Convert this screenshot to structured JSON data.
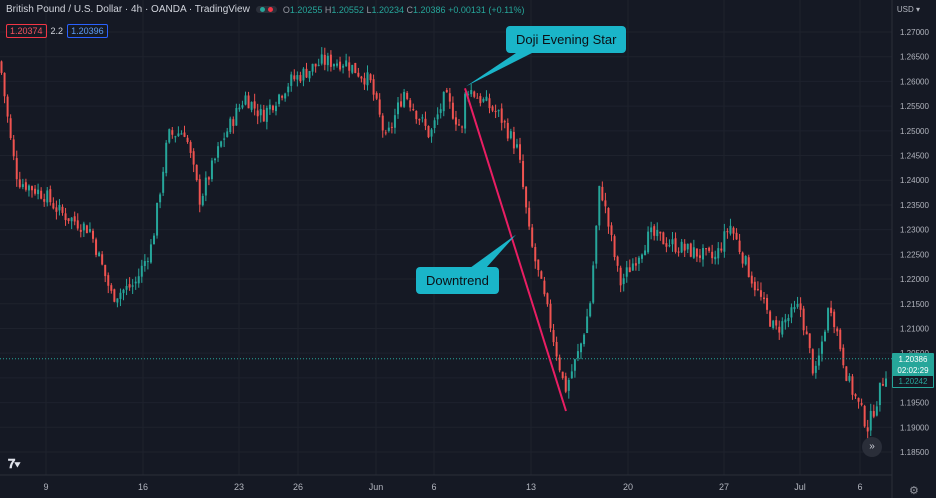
{
  "header": {
    "symbol": "British Pound / U.S. Dollar · 4h · OANDA · TradingView",
    "o_key": "O",
    "o_val": "1.20255",
    "h_key": "H",
    "h_val": "1.20552",
    "l_key": "L",
    "l_val": "1.20234",
    "c_key": "C",
    "c_val": "1.20386",
    "change": "+0.00131 (+0.11%)",
    "sell_price": "1.20374",
    "spread": "2.2",
    "buy_price": "1.20396"
  },
  "currency": "USD",
  "current_price": "1.20386",
  "countdown": "02:02:29",
  "prev_close": "1.20242",
  "annotations": {
    "top": "Doji Evening Star",
    "middle": "Downtrend"
  },
  "icons": {
    "logo": "tradingview-logo-icon",
    "scroll": "scroll-forward-icon",
    "settings": "settings-gear-icon"
  },
  "colors": {
    "background": "#151924",
    "up": "#26a69a",
    "down": "#ef5350",
    "callout": "#1ab5c9",
    "trendline": "#e91e63"
  },
  "chart_data": {
    "type": "candlestick",
    "ylim": [
      1.183,
      1.273
    ],
    "y_ticks": [
      "1.27000",
      "1.26500",
      "1.26000",
      "1.25500",
      "1.25000",
      "1.24500",
      "1.24000",
      "1.23500",
      "1.23000",
      "1.22500",
      "1.22000",
      "1.21500",
      "1.21000",
      "1.20500",
      "1.20000",
      "1.19500",
      "1.19000",
      "1.18500"
    ],
    "x_ticks": [
      "9",
      "16",
      "23",
      "26",
      "Jun",
      "6",
      "13",
      "20",
      "27",
      "Jul",
      "6"
    ],
    "waypoints": [
      {
        "x": 0,
        "price": 1.264
      },
      {
        "x": 12,
        "price": 1.246
      },
      {
        "x": 18,
        "price": 1.24
      },
      {
        "x": 45,
        "price": 1.237
      },
      {
        "x": 60,
        "price": 1.2335
      },
      {
        "x": 90,
        "price": 1.23
      },
      {
        "x": 112,
        "price": 1.2165
      },
      {
        "x": 135,
        "price": 1.219
      },
      {
        "x": 152,
        "price": 1.227
      },
      {
        "x": 168,
        "price": 1.249
      },
      {
        "x": 185,
        "price": 1.25
      },
      {
        "x": 200,
        "price": 1.236
      },
      {
        "x": 222,
        "price": 1.248
      },
      {
        "x": 245,
        "price": 1.257
      },
      {
        "x": 262,
        "price": 1.253
      },
      {
        "x": 290,
        "price": 1.26
      },
      {
        "x": 322,
        "price": 1.264
      },
      {
        "x": 345,
        "price": 1.264
      },
      {
        "x": 370,
        "price": 1.26
      },
      {
        "x": 386,
        "price": 1.248
      },
      {
        "x": 404,
        "price": 1.258
      },
      {
        "x": 430,
        "price": 1.249
      },
      {
        "x": 445,
        "price": 1.257
      },
      {
        "x": 462,
        "price": 1.25
      },
      {
        "x": 466,
        "price": 1.259
      },
      {
        "x": 500,
        "price": 1.253
      },
      {
        "x": 518,
        "price": 1.246
      },
      {
        "x": 530,
        "price": 1.228
      },
      {
        "x": 548,
        "price": 1.213
      },
      {
        "x": 565,
        "price": 1.1975
      },
      {
        "x": 580,
        "price": 1.206
      },
      {
        "x": 590,
        "price": 1.215
      },
      {
        "x": 600,
        "price": 1.2395
      },
      {
        "x": 620,
        "price": 1.219
      },
      {
        "x": 650,
        "price": 1.229
      },
      {
        "x": 685,
        "price": 1.226
      },
      {
        "x": 715,
        "price": 1.224
      },
      {
        "x": 730,
        "price": 1.231
      },
      {
        "x": 752,
        "price": 1.22
      },
      {
        "x": 775,
        "price": 1.2095
      },
      {
        "x": 800,
        "price": 1.2145
      },
      {
        "x": 815,
        "price": 1.2
      },
      {
        "x": 830,
        "price": 1.2155
      },
      {
        "x": 848,
        "price": 1.1995
      },
      {
        "x": 868,
        "price": 1.19
      },
      {
        "x": 890,
        "price": 1.2039
      }
    ],
    "price_line": 1.20386,
    "prev_close_line": 1.20242,
    "trendline": [
      {
        "x": 466,
        "price": 1.259
      },
      {
        "x": 566,
        "price": 1.1933
      }
    ],
    "doji_star_point": {
      "x": 466,
      "price": 1.259
    }
  }
}
